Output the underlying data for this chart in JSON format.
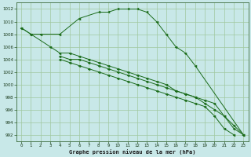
{
  "title": "Graphe pression niveau de la mer (hPa)",
  "background_color": "#c8e8e8",
  "grid_color": "#a0c8a0",
  "line_color": "#1a6b1a",
  "xlim": [
    -0.5,
    23.5
  ],
  "ylim": [
    991,
    1013
  ],
  "yticks": [
    992,
    994,
    996,
    998,
    1000,
    1002,
    1004,
    1006,
    1008,
    1010,
    1012
  ],
  "xticks": [
    0,
    1,
    2,
    3,
    4,
    5,
    6,
    7,
    8,
    9,
    10,
    11,
    12,
    13,
    14,
    15,
    16,
    17,
    18,
    19,
    20,
    21,
    22,
    23
  ],
  "curve1_x": [
    0,
    1,
    2,
    4,
    6,
    8,
    9,
    10,
    11,
    12,
    13,
    14,
    15,
    16,
    17,
    18,
    23
  ],
  "curve1_y": [
    1009,
    1008,
    1008,
    1008,
    1010.5,
    1011.5,
    1011.5,
    1012,
    1012,
    1012,
    1011.5,
    1010,
    1008,
    1006,
    1005,
    1003,
    992
  ],
  "curve2_x": [
    0,
    1,
    3,
    4,
    5,
    6,
    7,
    8,
    9,
    10,
    11,
    12,
    13,
    14,
    15,
    16,
    17,
    18,
    19,
    20,
    21,
    22,
    23
  ],
  "curve2_y": [
    1009,
    1008,
    1006,
    1005,
    1005,
    1004.5,
    1004,
    1003.5,
    1003,
    1002.5,
    1002,
    1001.5,
    1001,
    1000.5,
    1000,
    999,
    998.5,
    998,
    997,
    996,
    995,
    993.5,
    992
  ],
  "curve3_x": [
    4,
    5,
    6,
    7,
    8,
    9,
    10,
    11,
    12,
    13,
    14,
    15,
    16,
    17,
    18,
    19,
    20,
    21,
    22,
    23
  ],
  "curve3_y": [
    1004.5,
    1004,
    1004,
    1003.5,
    1003,
    1002.5,
    1002,
    1001.5,
    1001,
    1000.5,
    1000,
    999.5,
    999,
    998.5,
    998,
    997.5,
    997,
    995,
    993,
    992
  ],
  "curve4_x": [
    4,
    5,
    6,
    7,
    8,
    9,
    10,
    11,
    12,
    13,
    14,
    15,
    16,
    17,
    18,
    19,
    20,
    21,
    22
  ],
  "curve4_y": [
    1004,
    1003.5,
    1003,
    1002.5,
    1002,
    1001.5,
    1001,
    1000.5,
    1000,
    999.5,
    999,
    998.5,
    998,
    997.5,
    997,
    996.5,
    995,
    993,
    992
  ]
}
